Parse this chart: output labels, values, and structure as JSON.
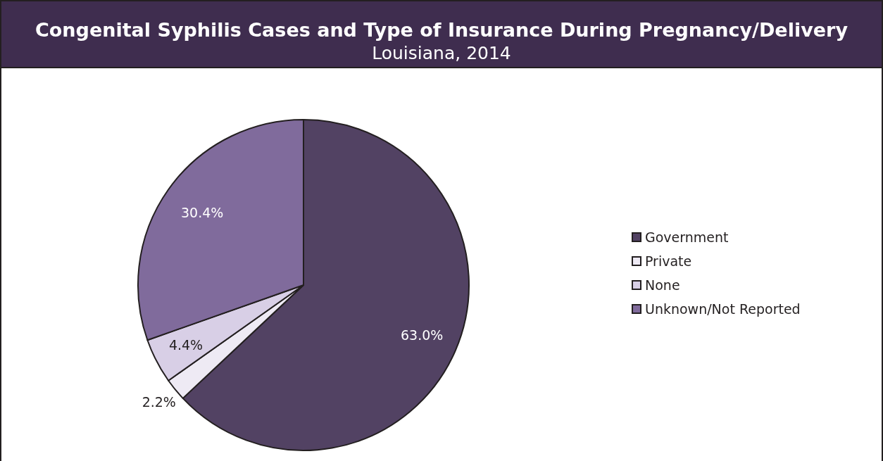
{
  "chart_data": {
    "type": "pie",
    "title": "Congenital Syphilis Cases and Type of Insurance During Pregnancy/Delivery",
    "subtitle": "Louisiana, 2014",
    "categories": [
      "Government",
      "Private",
      "None",
      "Unknown/Not Reported"
    ],
    "values": [
      63.0,
      2.2,
      4.4,
      30.4
    ],
    "colors": [
      "#524263",
      "#eeeaf4",
      "#d8cfe6",
      "#806b9c"
    ],
    "value_labels": [
      "63.0%",
      "2.2%",
      "4.4%",
      "30.4%"
    ],
    "legend": "right"
  }
}
